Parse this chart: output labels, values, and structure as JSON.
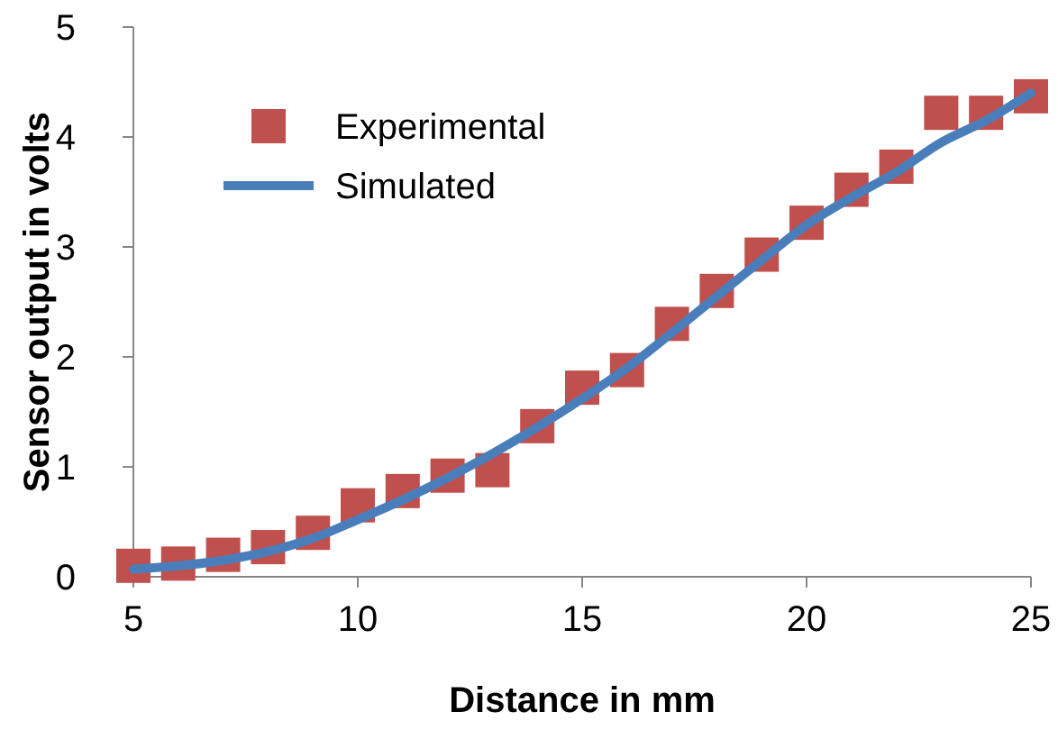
{
  "chart_data": {
    "type": "scatter",
    "xlabel": "Distance in mm",
    "ylabel": "Sensor output in volts",
    "x": [
      5,
      6,
      7,
      8,
      9,
      10,
      11,
      12,
      13,
      14,
      15,
      16,
      17,
      18,
      19,
      20,
      21,
      22,
      23,
      24,
      25
    ],
    "series": [
      {
        "name": "Experimental",
        "color": "#c0504d",
        "marker": "square",
        "values": [
          0.1,
          0.12,
          0.2,
          0.27,
          0.4,
          0.65,
          0.78,
          0.92,
          0.97,
          1.37,
          1.72,
          1.88,
          2.3,
          2.6,
          2.93,
          3.22,
          3.52,
          3.73,
          4.22,
          4.22,
          4.37
        ]
      },
      {
        "name": "Simulated",
        "type": "line",
        "color": "#4a7ebb",
        "line_style": "solid",
        "values": [
          0.07,
          0.1,
          0.15,
          0.23,
          0.35,
          0.52,
          0.7,
          0.9,
          1.12,
          1.36,
          1.62,
          1.9,
          2.22,
          2.55,
          2.88,
          3.2,
          3.45,
          3.68,
          3.95,
          4.15,
          4.4
        ]
      }
    ],
    "xlim": [
      5,
      25
    ],
    "xticks": [
      5,
      10,
      15,
      20,
      25
    ],
    "ylim": [
      0,
      5
    ],
    "yticks": [
      0,
      1,
      2,
      3,
      4,
      5
    ],
    "grid": false,
    "legend": "top left"
  }
}
